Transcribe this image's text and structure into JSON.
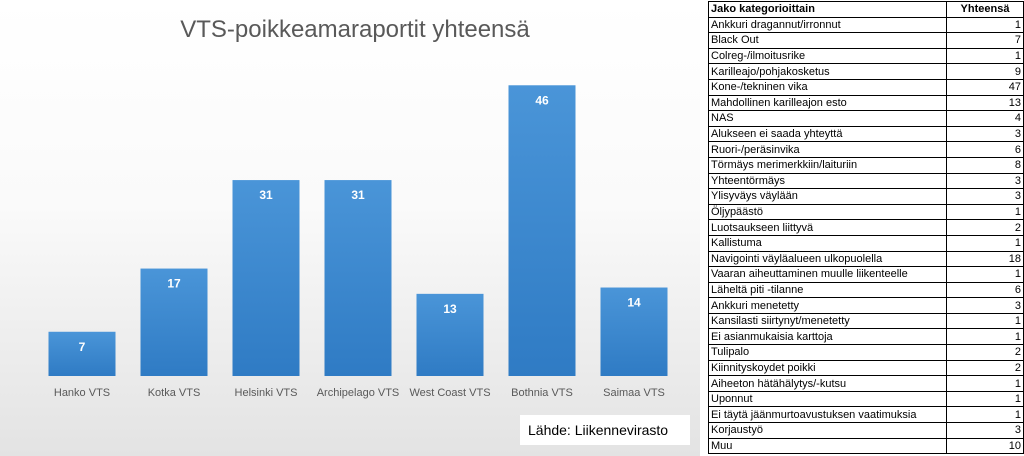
{
  "chart_data": {
    "type": "bar",
    "title": "VTS-poikkeamaraportit yhteensä",
    "categories": [
      "Hanko VTS",
      "Kotka VTS",
      "Helsinki VTS",
      "Archipelago VTS",
      "West Coast VTS",
      "Bothnia VTS",
      "Saimaa VTS"
    ],
    "values": [
      7,
      17,
      31,
      31,
      13,
      46,
      14
    ],
    "ylim": [
      0,
      50
    ],
    "grid": false,
    "legend": "none",
    "bar_color": "#3b86cc"
  },
  "source_label": "Lähde: Liikennevirasto",
  "table": {
    "headers": [
      "Jako kategorioittain",
      "Yhteensä"
    ],
    "rows": [
      {
        "category": "Ankkuri dragannut/irronnut",
        "total": "1"
      },
      {
        "category": "Black Out",
        "total": "7"
      },
      {
        "category": "Colreg-/ilmoitusrike",
        "total": "1"
      },
      {
        "category": "Karilleajo/pohjakosketus",
        "total": "9"
      },
      {
        "category": "Kone-/tekninen vika",
        "total": "47"
      },
      {
        "category": "Mahdollinen karilleajon esto",
        "total": "13"
      },
      {
        "category": "NAS",
        "total": "4"
      },
      {
        "category": "Alukseen ei saada yhteyttä",
        "total": "3"
      },
      {
        "category": "Ruori-/peräsinvika",
        "total": "6"
      },
      {
        "category": "Törmäys merimerkkiin/laituriin",
        "total": "8"
      },
      {
        "category": "Yhteentörmäys",
        "total": "3"
      },
      {
        "category": "Ylisyväys väylään",
        "total": "3"
      },
      {
        "category": "Öljypäästö",
        "total": "1"
      },
      {
        "category": "Luotsaukseen liittyvä",
        "total": "2"
      },
      {
        "category": "Kallistuma",
        "total": "1"
      },
      {
        "category": "Navigointi väyläalueen ulkopuolella",
        "total": "18"
      },
      {
        "category": "Vaaran aiheuttaminen muulle liikenteelle",
        "total": "1"
      },
      {
        "category": "Läheltä piti -tilanne",
        "total": "6"
      },
      {
        "category": "Ankkuri menetetty",
        "total": "3"
      },
      {
        "category": "Kansilasti siirtynyt/menetetty",
        "total": "1"
      },
      {
        "category": "Ei asianmukaisia karttoja",
        "total": "1"
      },
      {
        "category": "Tulipalo",
        "total": "2"
      },
      {
        "category": "Kiinnityskoydet poikki",
        "total": "2"
      },
      {
        "category": "Aiheeton hätähälytys/-kutsu",
        "total": "1"
      },
      {
        "category": "Uponnut",
        "total": "1"
      },
      {
        "category": "Ei täytä jäänmurtoavustuksen vaatimuksia",
        "total": "1"
      },
      {
        "category": "Korjaustyö",
        "total": "3"
      },
      {
        "category": "Muu",
        "total": "10"
      }
    ]
  }
}
